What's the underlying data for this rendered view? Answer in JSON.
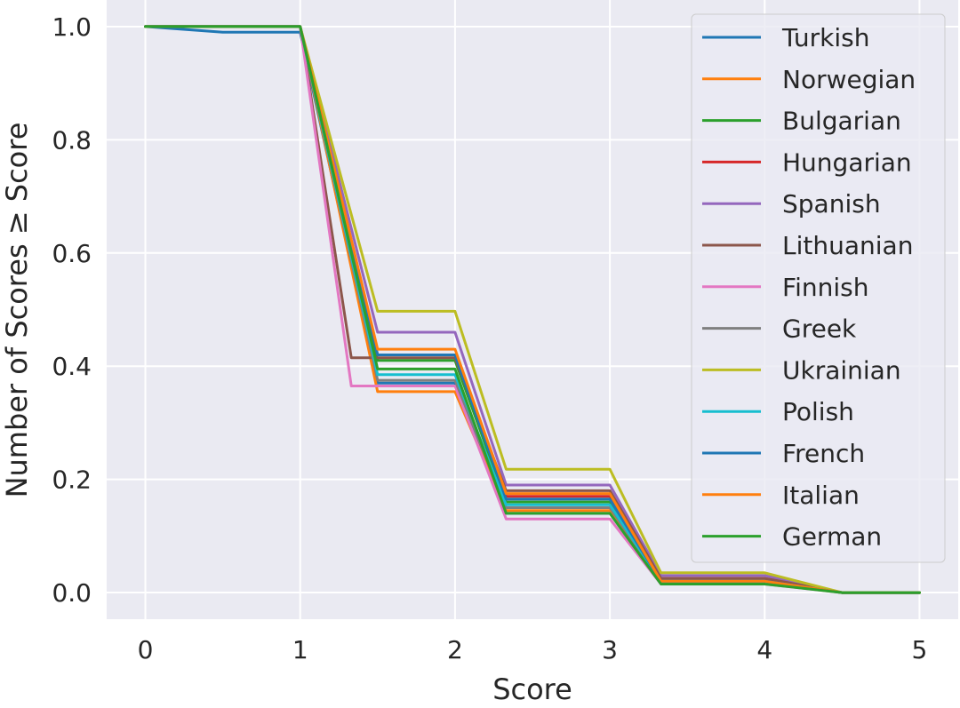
{
  "chart_data": {
    "type": "line",
    "xlabel": "Score",
    "ylabel": "Number of Scores ≥ Score",
    "xlim": [
      -0.25,
      5.25
    ],
    "ylim": [
      -0.047,
      1.047
    ],
    "xticks": [
      0,
      1,
      2,
      3,
      4,
      5
    ],
    "yticks": [
      0.0,
      0.2,
      0.4,
      0.6,
      0.8,
      1.0
    ],
    "xtick_labels": [
      "0",
      "1",
      "2",
      "3",
      "4",
      "5"
    ],
    "ytick_labels": [
      "0.0",
      "0.2",
      "0.4",
      "0.6",
      "0.8",
      "1.0"
    ],
    "grid": true,
    "legend_position": "top-right",
    "series": [
      {
        "name": "Turkish",
        "color": "#1f77b4",
        "x": [
          0,
          0.5,
          1,
          1.5,
          2,
          2.33,
          3,
          3.33,
          4,
          4.5,
          5
        ],
        "y": [
          1.0,
          0.99,
          0.99,
          0.37,
          0.37,
          0.14,
          0.14,
          0.02,
          0.02,
          0.0,
          0.0
        ]
      },
      {
        "name": "Norwegian",
        "color": "#ff7f0e",
        "x": [
          0,
          0.5,
          1,
          1.5,
          2,
          2.33,
          3,
          3.33,
          4,
          4.5,
          5
        ],
        "y": [
          1.0,
          1.0,
          1.0,
          0.355,
          0.355,
          0.145,
          0.145,
          0.02,
          0.02,
          0.0,
          0.0
        ]
      },
      {
        "name": "Bulgarian",
        "color": "#2ca02c",
        "x": [
          0,
          0.5,
          1,
          1.5,
          2,
          2.33,
          3,
          3.33,
          4,
          4.5,
          5
        ],
        "y": [
          1.0,
          1.0,
          1.0,
          0.41,
          0.41,
          0.16,
          0.16,
          0.02,
          0.02,
          0.0,
          0.0
        ]
      },
      {
        "name": "Hungarian",
        "color": "#d62728",
        "x": [
          0,
          0.5,
          1,
          1.5,
          2,
          2.33,
          3,
          3.33,
          4,
          4.5,
          5
        ],
        "y": [
          1.0,
          1.0,
          1.0,
          0.42,
          0.42,
          0.17,
          0.17,
          0.025,
          0.025,
          0.0,
          0.0
        ]
      },
      {
        "name": "Spanish",
        "color": "#9467bd",
        "x": [
          0,
          0.5,
          1,
          1.5,
          2,
          2.33,
          3,
          3.33,
          4,
          4.5,
          5
        ],
        "y": [
          1.0,
          1.0,
          1.0,
          0.46,
          0.46,
          0.19,
          0.19,
          0.03,
          0.03,
          0.0,
          0.0
        ]
      },
      {
        "name": "Lithuanian",
        "color": "#8c564b",
        "x": [
          0,
          0.5,
          1,
          1.33,
          2,
          2.33,
          3,
          3.33,
          4,
          4.5,
          5
        ],
        "y": [
          1.0,
          1.0,
          1.0,
          0.415,
          0.415,
          0.18,
          0.18,
          0.025,
          0.025,
          0.0,
          0.0
        ]
      },
      {
        "name": "Finnish",
        "color": "#e377c2",
        "x": [
          0,
          0.5,
          1,
          1.33,
          2,
          2.33,
          3,
          3.33,
          4,
          4.5,
          5
        ],
        "y": [
          1.0,
          1.0,
          1.0,
          0.365,
          0.365,
          0.13,
          0.13,
          0.015,
          0.015,
          0.0,
          0.0
        ]
      },
      {
        "name": "Greek",
        "color": "#7f7f7f",
        "x": [
          0,
          0.5,
          1,
          1.5,
          2,
          2.33,
          3,
          3.33,
          4,
          4.5,
          5
        ],
        "y": [
          1.0,
          1.0,
          1.0,
          0.375,
          0.375,
          0.15,
          0.15,
          0.02,
          0.02,
          0.0,
          0.0
        ]
      },
      {
        "name": "Ukrainian",
        "color": "#bcbd22",
        "x": [
          0,
          0.5,
          1,
          1.5,
          2,
          2.33,
          3,
          3.33,
          4,
          4.5,
          5
        ],
        "y": [
          1.0,
          1.0,
          1.0,
          0.497,
          0.497,
          0.218,
          0.218,
          0.035,
          0.035,
          0.0,
          0.0
        ]
      },
      {
        "name": "Polish",
        "color": "#17becf",
        "x": [
          0,
          0.5,
          1,
          1.5,
          2,
          2.33,
          3,
          3.33,
          4,
          4.5,
          5
        ],
        "y": [
          1.0,
          1.0,
          1.0,
          0.385,
          0.385,
          0.155,
          0.155,
          0.02,
          0.02,
          0.0,
          0.0
        ]
      },
      {
        "name": "French",
        "color": "#1f77b4",
        "x": [
          0,
          0.5,
          1,
          1.5,
          2,
          2.33,
          3,
          3.33,
          4,
          4.5,
          5
        ],
        "y": [
          1.0,
          1.0,
          1.0,
          0.42,
          0.42,
          0.165,
          0.165,
          0.02,
          0.02,
          0.0,
          0.0
        ]
      },
      {
        "name": "Italian",
        "color": "#ff7f0e",
        "x": [
          0,
          0.5,
          1,
          1.5,
          2,
          2.33,
          3,
          3.33,
          4,
          4.5,
          5
        ],
        "y": [
          1.0,
          1.0,
          1.0,
          0.43,
          0.43,
          0.175,
          0.175,
          0.02,
          0.02,
          0.0,
          0.0
        ]
      },
      {
        "name": "German",
        "color": "#2ca02c",
        "x": [
          0,
          0.5,
          1,
          1.5,
          2,
          2.33,
          3,
          3.33,
          4,
          4.5,
          5
        ],
        "y": [
          1.0,
          1.0,
          1.0,
          0.395,
          0.395,
          0.14,
          0.14,
          0.015,
          0.015,
          0.0,
          0.0
        ]
      }
    ]
  },
  "colors": {
    "plot_background": "#eaeaf2",
    "grid": "#ffffff",
    "text": "#262626"
  }
}
